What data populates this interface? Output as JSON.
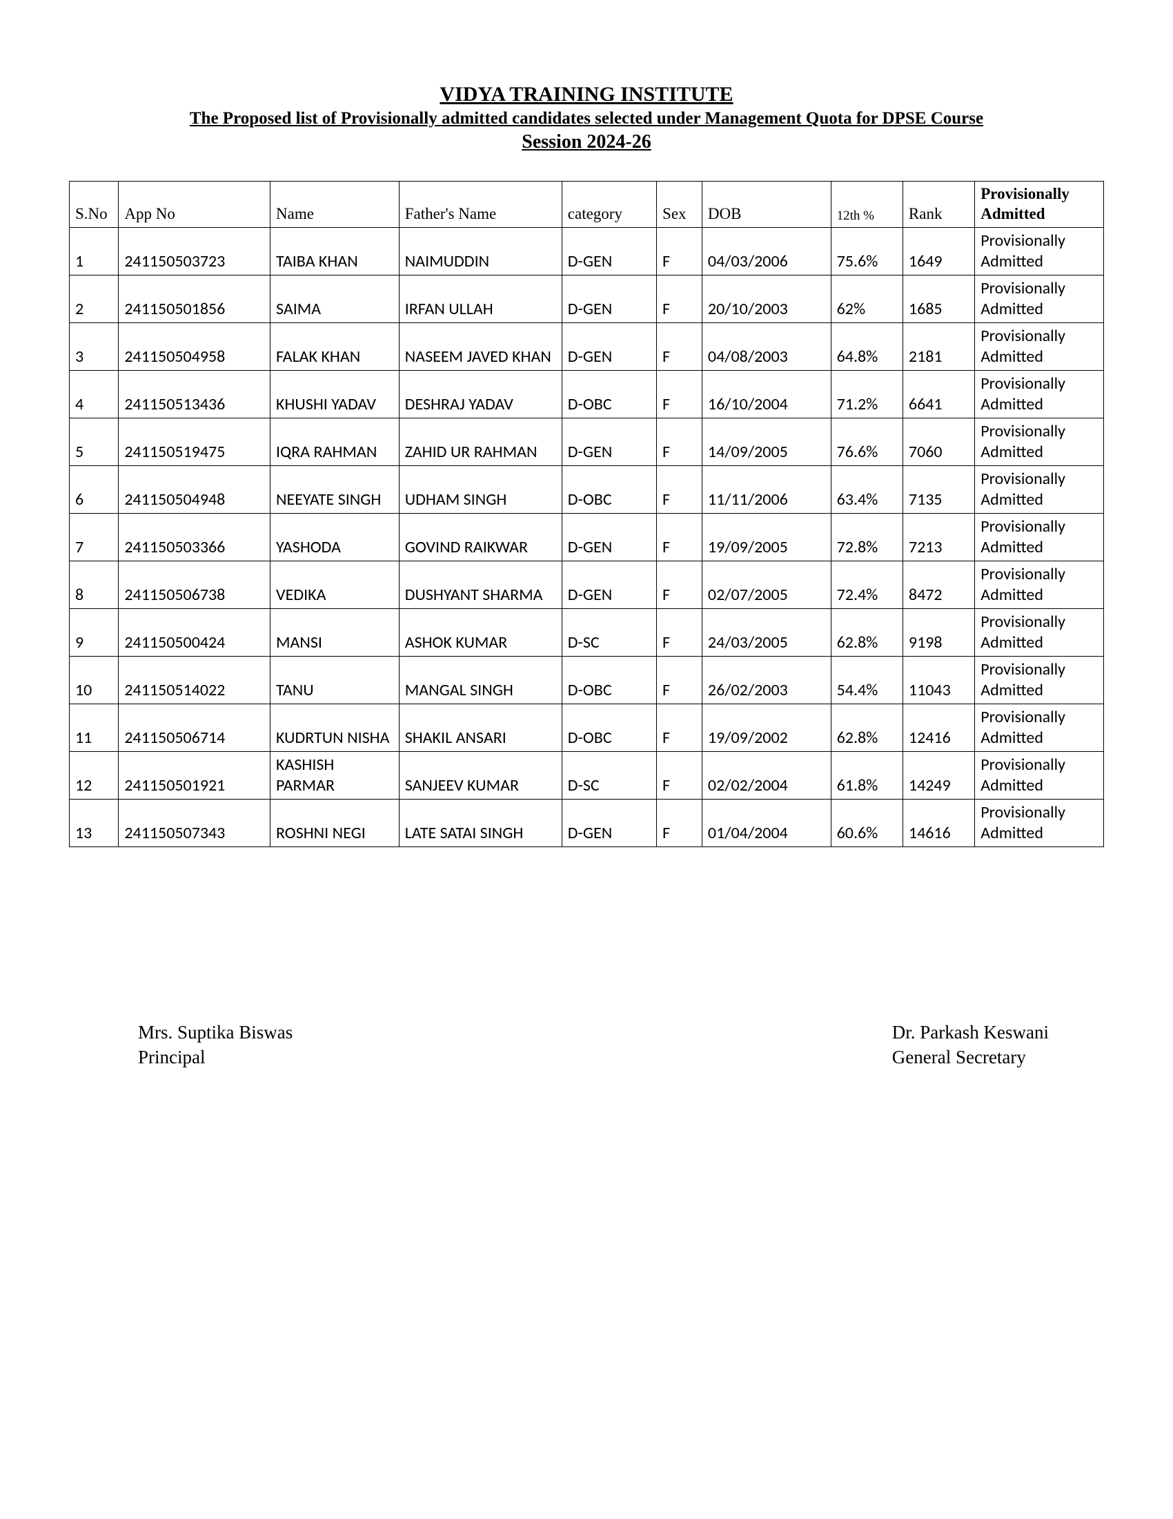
{
  "header": {
    "institute": "VIDYA TRAINING INSTITUTE",
    "subtitle": "The Proposed list of Provisionally admitted candidates selected under Management Quota for DPSE Course",
    "session": "Session 2024-26"
  },
  "table": {
    "columns": {
      "sno": "S.No",
      "appno": "App No",
      "name": "Name",
      "father": "Father's Name",
      "category": "category",
      "sex": "Sex",
      "dob": "DOB",
      "pct": "12th %",
      "rank": "Rank",
      "status": "Provisionally Admitted"
    },
    "rows": [
      {
        "sno": "1",
        "appno": "241150503723",
        "name": "TAIBA KHAN",
        "father": "NAIMUDDIN",
        "category": "D-GEN",
        "sex": "F",
        "dob": "04/03/2006",
        "pct": "75.6%",
        "rank": "1649",
        "status": "Provisionally Admitted"
      },
      {
        "sno": "2",
        "appno": "241150501856",
        "name": "SAIMA",
        "father": "IRFAN ULLAH",
        "category": "D-GEN",
        "sex": "F",
        "dob": "20/10/2003",
        "pct": "62%",
        "rank": "1685",
        "status": "Provisionally Admitted"
      },
      {
        "sno": "3",
        "appno": "241150504958",
        "name": "FALAK KHAN",
        "father": "NASEEM JAVED KHAN",
        "category": "D-GEN",
        "sex": "F",
        "dob": "04/08/2003",
        "pct": "64.8%",
        "rank": "2181",
        "status": "Provisionally Admitted"
      },
      {
        "sno": "4",
        "appno": "241150513436",
        "name": "KHUSHI YADAV",
        "father": "DESHRAJ YADAV",
        "category": "D-OBC",
        "sex": "F",
        "dob": "16/10/2004",
        "pct": "71.2%",
        "rank": "6641",
        "status": "Provisionally Admitted"
      },
      {
        "sno": "5",
        "appno": "241150519475",
        "name": "IQRA RAHMAN",
        "father": "ZAHID UR RAHMAN",
        "category": "D-GEN",
        "sex": "F",
        "dob": "14/09/2005",
        "pct": "76.6%",
        "rank": "7060",
        "status": "Provisionally Admitted"
      },
      {
        "sno": "6",
        "appno": "241150504948",
        "name": "NEEYATE SINGH",
        "father": "UDHAM SINGH",
        "category": "D-OBC",
        "sex": "F",
        "dob": "11/11/2006",
        "pct": "63.4%",
        "rank": "7135",
        "status": "Provisionally Admitted"
      },
      {
        "sno": "7",
        "appno": "241150503366",
        "name": "YASHODA",
        "father": "GOVIND RAIKWAR",
        "category": "D-GEN",
        "sex": "F",
        "dob": "19/09/2005",
        "pct": "72.8%",
        "rank": "7213",
        "status": "Provisionally Admitted"
      },
      {
        "sno": "8",
        "appno": "241150506738",
        "name": "VEDIKA",
        "father": "DUSHYANT SHARMA",
        "category": "D-GEN",
        "sex": "F",
        "dob": "02/07/2005",
        "pct": "72.4%",
        "rank": "8472",
        "status": "Provisionally Admitted"
      },
      {
        "sno": "9",
        "appno": "241150500424",
        "name": "MANSI",
        "father": "ASHOK KUMAR",
        "category": "D-SC",
        "sex": "F",
        "dob": "24/03/2005",
        "pct": "62.8%",
        "rank": "9198",
        "status": "Provisionally Admitted"
      },
      {
        "sno": "10",
        "appno": "241150514022",
        "name": "TANU",
        "father": "MANGAL SINGH",
        "category": "D-OBC",
        "sex": "F",
        "dob": "26/02/2003",
        "pct": "54.4%",
        "rank": "11043",
        "status": "Provisionally Admitted"
      },
      {
        "sno": "11",
        "appno": "241150506714",
        "name": "KUDRTUN NISHA",
        "father": "SHAKIL ANSARI",
        "category": "D-OBC",
        "sex": "F",
        "dob": "19/09/2002",
        "pct": "62.8%",
        "rank": "12416",
        "status": "Provisionally Admitted"
      },
      {
        "sno": "12",
        "appno": "241150501921",
        "name": "KASHISH PARMAR",
        "father": "SANJEEV KUMAR",
        "category": "D-SC",
        "sex": "F",
        "dob": "02/02/2004",
        "pct": "61.8%",
        "rank": "14249",
        "status": "Provisionally Admitted"
      },
      {
        "sno": "13",
        "appno": "241150507343",
        "name": "ROSHNI NEGI",
        "father": "LATE SATAI SINGH",
        "category": "D-GEN",
        "sex": "F",
        "dob": "01/04/2004",
        "pct": "60.6%",
        "rank": "14616",
        "status": "Provisionally Admitted"
      }
    ]
  },
  "signatures": {
    "left_name": "Mrs. Suptika Biswas",
    "left_title": "Principal",
    "right_name": "Dr. Parkash Keswani",
    "right_title": "General Secretary"
  }
}
